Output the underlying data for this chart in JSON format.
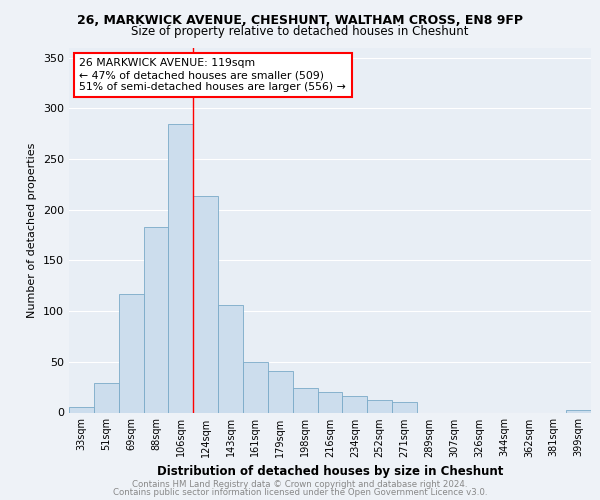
{
  "title1": "26, MARKWICK AVENUE, CHESHUNT, WALTHAM CROSS, EN8 9FP",
  "title2": "Size of property relative to detached houses in Cheshunt",
  "xlabel": "Distribution of detached houses by size in Cheshunt",
  "ylabel": "Number of detached properties",
  "categories": [
    "33sqm",
    "51sqm",
    "69sqm",
    "88sqm",
    "106sqm",
    "124sqm",
    "143sqm",
    "161sqm",
    "179sqm",
    "198sqm",
    "216sqm",
    "234sqm",
    "252sqm",
    "271sqm",
    "289sqm",
    "307sqm",
    "326sqm",
    "344sqm",
    "362sqm",
    "381sqm",
    "399sqm"
  ],
  "values": [
    5,
    29,
    117,
    183,
    285,
    214,
    106,
    50,
    41,
    24,
    20,
    16,
    12,
    10,
    0,
    0,
    0,
    0,
    0,
    0,
    2
  ],
  "bar_color": "#ccdded",
  "bar_edge_color": "#7aaac8",
  "red_line_x": 4.5,
  "annotation_text": "26 MARKWICK AVENUE: 119sqm\n← 47% of detached houses are smaller (509)\n51% of semi-detached houses are larger (556) →",
  "footer_line1": "Contains HM Land Registry data © Crown copyright and database right 2024.",
  "footer_line2": "Contains public sector information licensed under the Open Government Licence v3.0.",
  "ylim": [
    0,
    360
  ],
  "yticks": [
    0,
    50,
    100,
    150,
    200,
    250,
    300,
    350
  ],
  "bg_color": "#eef2f7",
  "plot_bg_color": "#e8eef5",
  "grid_color": "white"
}
